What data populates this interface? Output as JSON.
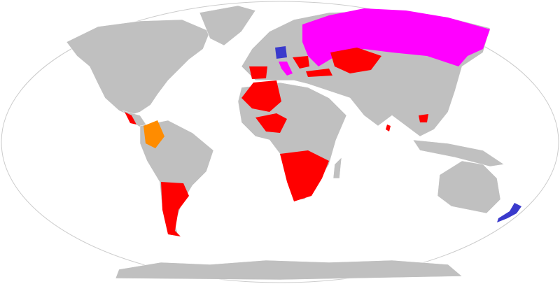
{
  "map": {
    "projection": "Robinson",
    "colors": {
      "ocean": "#ffffff",
      "land": "#c0c0c0",
      "red": "#ff0000",
      "magenta": "#ff00ff",
      "blue": "#3a3acc",
      "orange": "#ff8c00",
      "outline": "#cccccc"
    }
  }
}
